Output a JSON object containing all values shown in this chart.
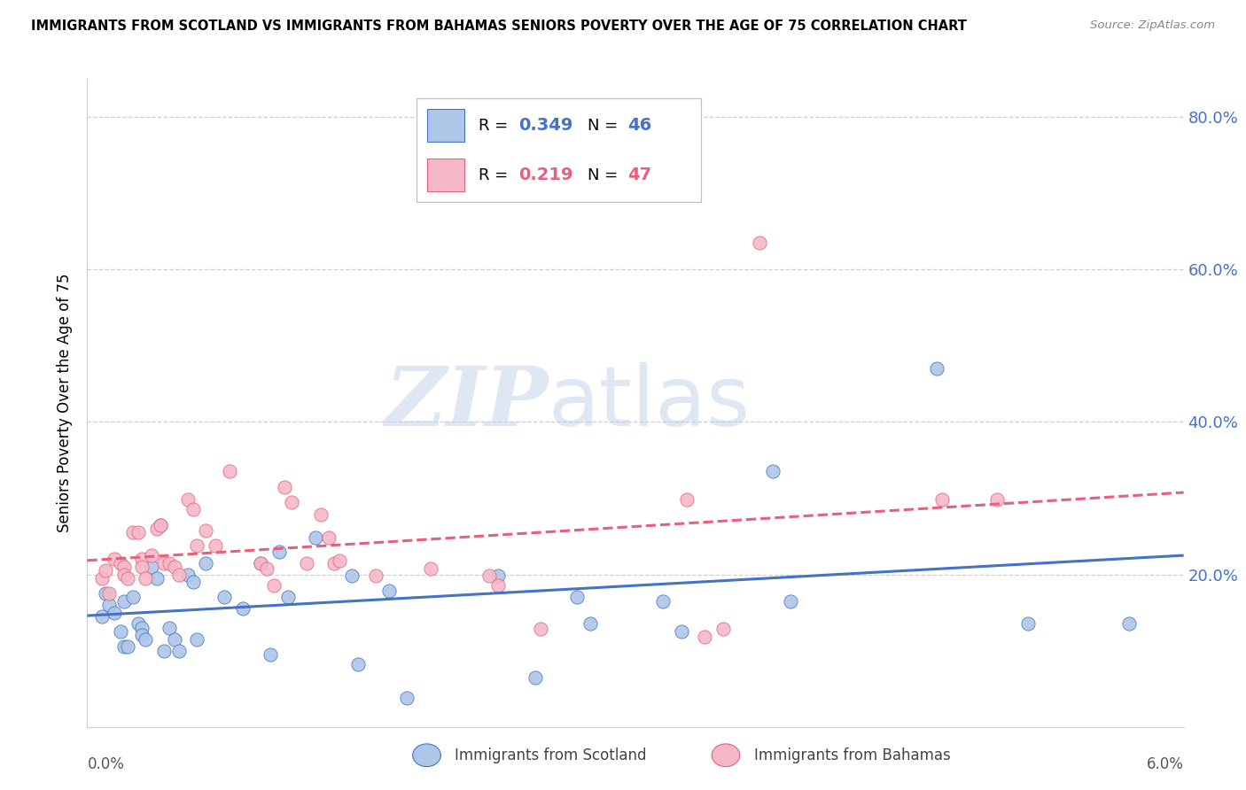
{
  "title": "IMMIGRANTS FROM SCOTLAND VS IMMIGRANTS FROM BAHAMAS SENIORS POVERTY OVER THE AGE OF 75 CORRELATION CHART",
  "source": "Source: ZipAtlas.com",
  "ylabel": "Seniors Poverty Over the Age of 75",
  "xlim": [
    0.0,
    0.06
  ],
  "ylim": [
    0.0,
    0.85
  ],
  "ytick_labels": [
    "20.0%",
    "40.0%",
    "60.0%",
    "80.0%"
  ],
  "ytick_values": [
    0.2,
    0.4,
    0.6,
    0.8
  ],
  "scotland_R": "0.349",
  "scotland_N": "46",
  "bahamas_R": "0.219",
  "bahamas_N": "47",
  "scotland_color": "#aec6e8",
  "bahamas_color": "#f4b8c8",
  "scotland_line_color": "#4472c4",
  "bahamas_line_color": "#e8607a",
  "watermark_zip": "ZIP",
  "watermark_atlas": "atlas",
  "scotland_x": [
    0.0008,
    0.001,
    0.0012,
    0.0015,
    0.0018,
    0.002,
    0.002,
    0.0022,
    0.0025,
    0.0028,
    0.003,
    0.003,
    0.0032,
    0.0035,
    0.0038,
    0.004,
    0.0042,
    0.0045,
    0.0048,
    0.005,
    0.0055,
    0.0058,
    0.006,
    0.0065,
    0.0075,
    0.0085,
    0.0095,
    0.01,
    0.0105,
    0.011,
    0.0125,
    0.0145,
    0.0148,
    0.0165,
    0.0175,
    0.0225,
    0.0245,
    0.0268,
    0.0275,
    0.0315,
    0.0325,
    0.0375,
    0.0385,
    0.0465,
    0.0515,
    0.057
  ],
  "scotland_y": [
    0.145,
    0.175,
    0.16,
    0.15,
    0.125,
    0.165,
    0.105,
    0.105,
    0.17,
    0.135,
    0.13,
    0.12,
    0.115,
    0.21,
    0.195,
    0.265,
    0.1,
    0.13,
    0.115,
    0.1,
    0.2,
    0.19,
    0.115,
    0.215,
    0.17,
    0.155,
    0.215,
    0.095,
    0.23,
    0.17,
    0.248,
    0.198,
    0.082,
    0.178,
    0.038,
    0.198,
    0.065,
    0.17,
    0.135,
    0.165,
    0.125,
    0.335,
    0.165,
    0.47,
    0.135,
    0.135
  ],
  "bahamas_x": [
    0.0008,
    0.001,
    0.0012,
    0.0015,
    0.0018,
    0.002,
    0.002,
    0.0022,
    0.0025,
    0.0028,
    0.003,
    0.003,
    0.0032,
    0.0035,
    0.0038,
    0.004,
    0.0042,
    0.0045,
    0.0048,
    0.005,
    0.0055,
    0.0058,
    0.006,
    0.0065,
    0.007,
    0.0078,
    0.0095,
    0.0098,
    0.0102,
    0.0108,
    0.0112,
    0.012,
    0.0128,
    0.0132,
    0.0135,
    0.0138,
    0.0158,
    0.0188,
    0.022,
    0.0225,
    0.0248,
    0.0328,
    0.0338,
    0.0348,
    0.0368,
    0.0468,
    0.0498
  ],
  "bahamas_y": [
    0.195,
    0.205,
    0.175,
    0.22,
    0.215,
    0.21,
    0.2,
    0.195,
    0.255,
    0.255,
    0.22,
    0.21,
    0.195,
    0.225,
    0.26,
    0.265,
    0.215,
    0.215,
    0.21,
    0.2,
    0.298,
    0.285,
    0.238,
    0.258,
    0.238,
    0.335,
    0.215,
    0.208,
    0.185,
    0.315,
    0.295,
    0.215,
    0.278,
    0.248,
    0.215,
    0.218,
    0.198,
    0.208,
    0.198,
    0.185,
    0.128,
    0.298,
    0.118,
    0.128,
    0.635,
    0.298,
    0.298
  ]
}
